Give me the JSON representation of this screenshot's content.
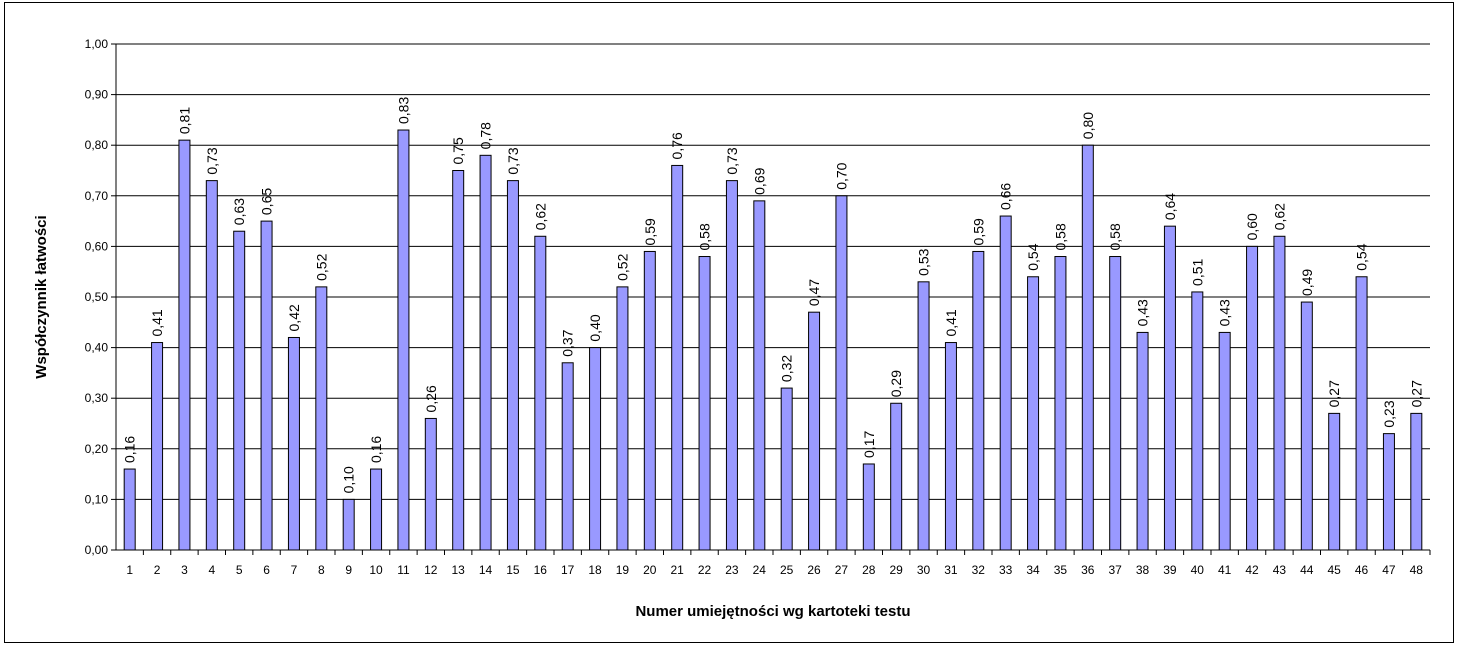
{
  "chart_data": {
    "type": "bar",
    "title": "",
    "xlabel": "Numer umiejętności wg kartoteki testu",
    "ylabel": "Współczynnik łatwości",
    "ylim": [
      0,
      1
    ],
    "ytick_step": 0.1,
    "yticks": [
      "0,00",
      "0,10",
      "0,20",
      "0,30",
      "0,40",
      "0,50",
      "0,60",
      "0,70",
      "0,80",
      "0,90",
      "1,00"
    ],
    "grid": true,
    "legend": "none",
    "bar_color": "#9999FF",
    "bar_border_color": "#000000",
    "categories": [
      "1",
      "2",
      "3",
      "4",
      "5",
      "6",
      "7",
      "8",
      "9",
      "10",
      "11",
      "12",
      "13",
      "14",
      "15",
      "16",
      "17",
      "18",
      "19",
      "20",
      "21",
      "22",
      "23",
      "24",
      "25",
      "26",
      "27",
      "28",
      "29",
      "30",
      "31",
      "32",
      "33",
      "34",
      "35",
      "36",
      "37",
      "38",
      "39",
      "40",
      "41",
      "42",
      "43",
      "44",
      "45",
      "46",
      "47",
      "48"
    ],
    "values": [
      0.16,
      0.41,
      0.81,
      0.73,
      0.63,
      0.65,
      0.42,
      0.52,
      0.1,
      0.16,
      0.83,
      0.26,
      0.75,
      0.78,
      0.73,
      0.62,
      0.37,
      0.4,
      0.52,
      0.59,
      0.76,
      0.58,
      0.73,
      0.69,
      0.32,
      0.47,
      0.7,
      0.17,
      0.29,
      0.53,
      0.41,
      0.59,
      0.66,
      0.54,
      0.58,
      0.8,
      0.58,
      0.43,
      0.64,
      0.51,
      0.43,
      0.6,
      0.62,
      0.49,
      0.27,
      0.54,
      0.23,
      0.27
    ],
    "data_labels": [
      "0,16",
      "0,41",
      "0,81",
      "0,73",
      "0,63",
      "0,65",
      "0,42",
      "0,52",
      "0,10",
      "0,16",
      "0,83",
      "0,26",
      "0,75",
      "0,78",
      "0,73",
      "0,62",
      "0,37",
      "0,40",
      "0,52",
      "0,59",
      "0,76",
      "0,58",
      "0,73",
      "0,69",
      "0,32",
      "0,47",
      "0,70",
      "0,17",
      "0,29",
      "0,53",
      "0,41",
      "0,59",
      "0,66",
      "0,54",
      "0,58",
      "0,80",
      "0,58",
      "0,43",
      "0,64",
      "0,51",
      "0,43",
      "0,60",
      "0,62",
      "0,49",
      "0,27",
      "0,54",
      "0,23",
      "0,27"
    ]
  }
}
